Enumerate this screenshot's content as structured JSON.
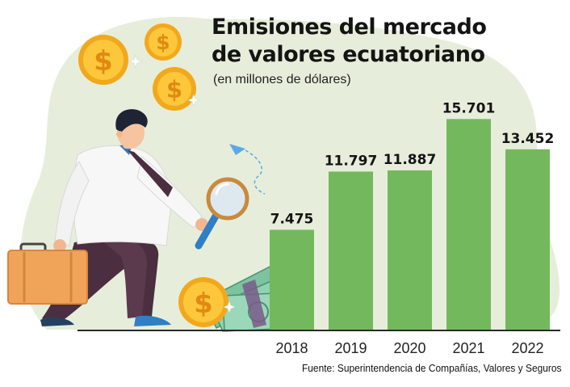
{
  "chart_data": {
    "type": "bar",
    "title_line1": "Emisiones del mercado",
    "title_line2": "de valores ecuatoriano",
    "subtitle": "(en millones de dólares)",
    "categories": [
      "2018",
      "2019",
      "2020",
      "2021",
      "2022"
    ],
    "values": [
      7475,
      11797,
      11887,
      15701,
      13452
    ],
    "value_labels": [
      "7.475",
      "11.797",
      "11.887",
      "15.701",
      "13.452"
    ],
    "ylim": [
      0,
      16500
    ],
    "grid": false,
    "source": "Fuente: Superintendencia de Compañías, Valores y Seguros",
    "colors": {
      "bar": "#74b85d",
      "background_blob": "#e6eedb",
      "text": "#141414"
    }
  },
  "illustration": {
    "icons": [
      "businessman-icon",
      "briefcase-icon",
      "magnifying-glass-icon",
      "coin-icon",
      "money-stack-icon",
      "paper-plane-icon"
    ],
    "coin_symbol": "$"
  }
}
